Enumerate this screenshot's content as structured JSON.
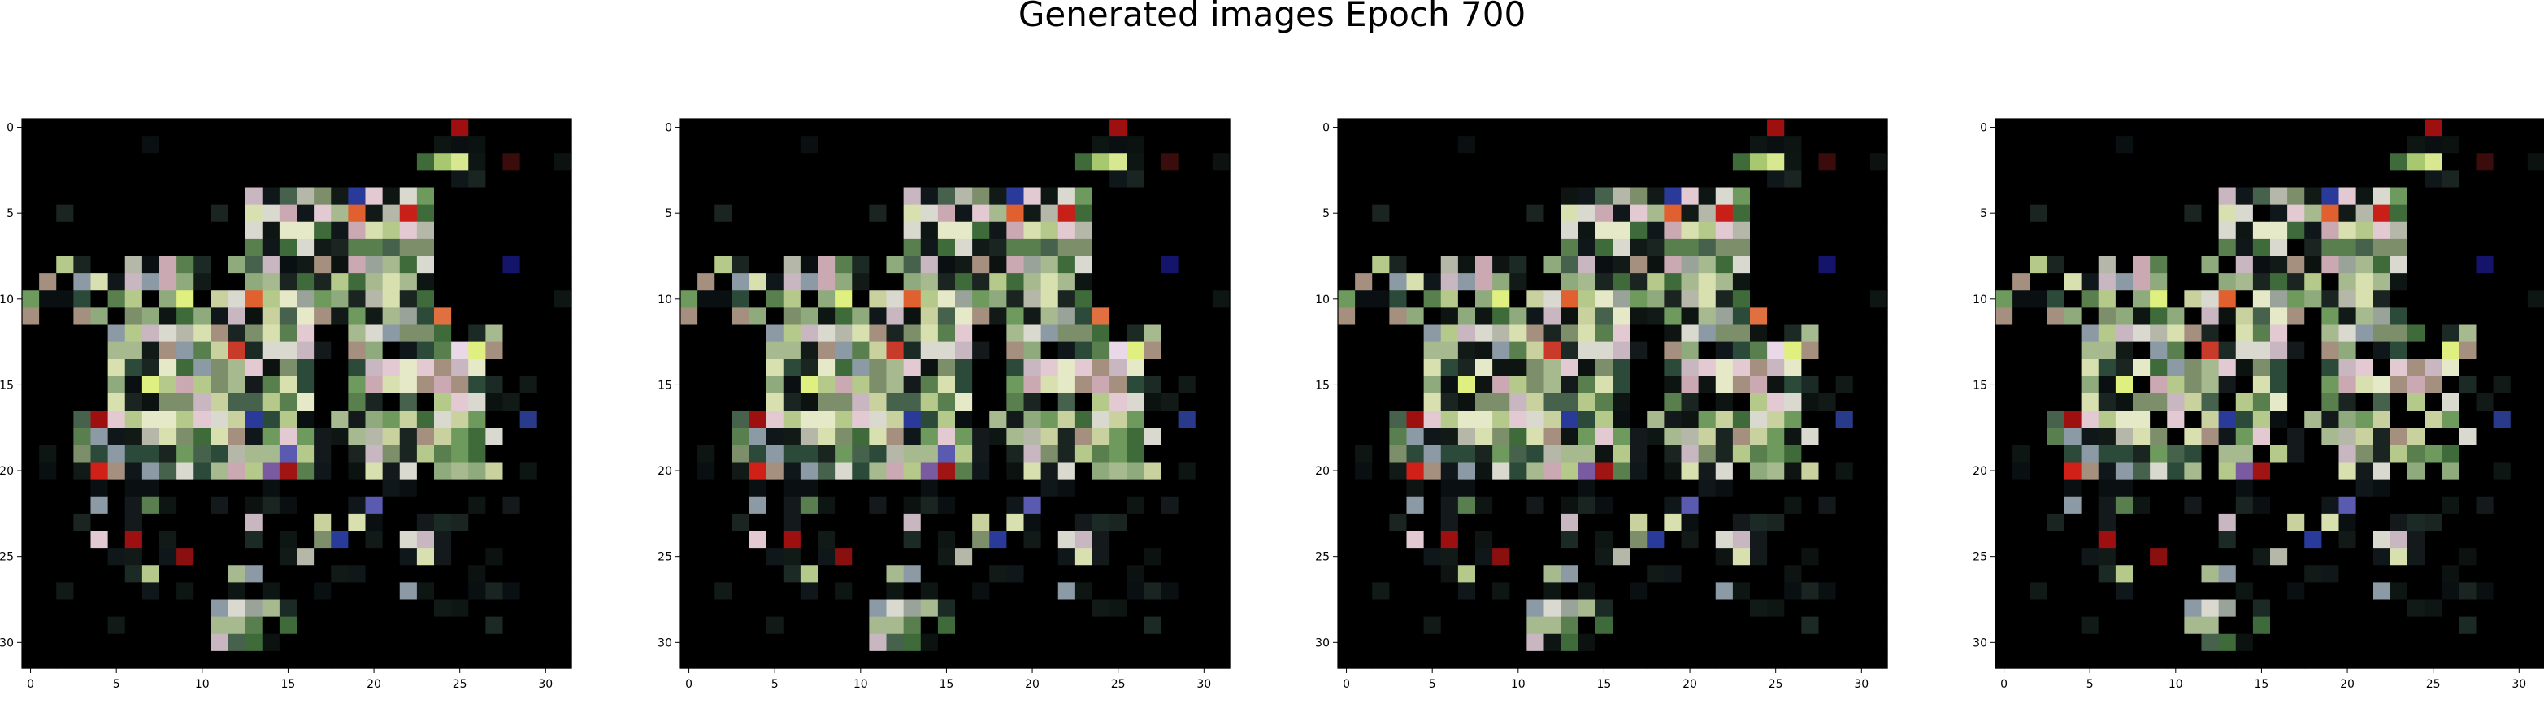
{
  "figure": {
    "title": "Generated images Epoch 700"
  },
  "chart_data": [
    {
      "type": "heatmap",
      "title": "",
      "xlabel": "",
      "ylabel": "",
      "xticks": [
        0,
        5,
        10,
        15,
        20,
        25,
        30
      ],
      "yticks": [
        0,
        5,
        10,
        15,
        20,
        25,
        30
      ],
      "xlim": [
        -0.5,
        31.5
      ],
      "ylim": [
        31.5,
        -0.5
      ],
      "grid": [
        32,
        32
      ],
      "seed": 11,
      "variant": 0
    },
    {
      "type": "heatmap",
      "title": "",
      "xlabel": "",
      "ylabel": "",
      "xticks": [
        0,
        5,
        10,
        15,
        20,
        25,
        30
      ],
      "yticks": [
        0,
        5,
        10,
        15,
        20,
        25,
        30
      ],
      "xlim": [
        -0.5,
        31.5
      ],
      "ylim": [
        31.5,
        -0.5
      ],
      "grid": [
        32,
        32
      ],
      "seed": 11,
      "variant": 1
    },
    {
      "type": "heatmap",
      "title": "",
      "xlabel": "",
      "ylabel": "",
      "xticks": [
        0,
        5,
        10,
        15,
        20,
        25,
        30
      ],
      "yticks": [
        0,
        5,
        10,
        15,
        20,
        25,
        30
      ],
      "xlim": [
        -0.5,
        31.5
      ],
      "ylim": [
        31.5,
        -0.5
      ],
      "grid": [
        32,
        32
      ],
      "seed": 11,
      "variant": 2
    },
    {
      "type": "heatmap",
      "title": "",
      "xlabel": "",
      "ylabel": "",
      "xticks": [
        0,
        5,
        10,
        15,
        20,
        25,
        30
      ],
      "yticks": [
        0,
        5,
        10,
        15,
        20,
        25,
        30
      ],
      "xlim": [
        -0.5,
        31.5
      ],
      "ylim": [
        31.5,
        -0.5
      ],
      "grid": [
        32,
        32
      ],
      "seed": 11,
      "variant": 3
    }
  ]
}
